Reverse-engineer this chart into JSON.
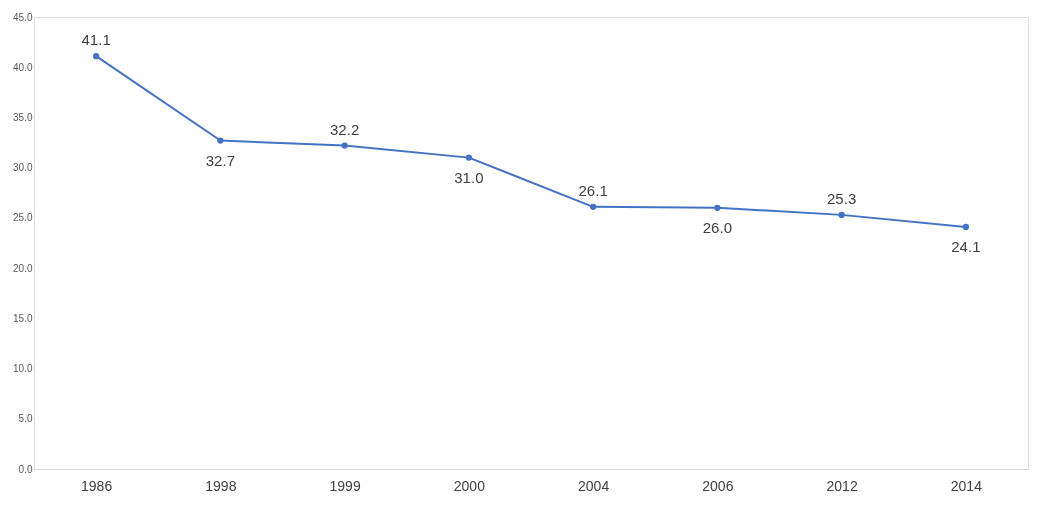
{
  "chart_data": {
    "type": "line",
    "categories": [
      "1986",
      "1998",
      "1999",
      "2000",
      "2004",
      "2006",
      "2012",
      "2014"
    ],
    "series": [
      {
        "color": "#4472c4",
        "values": [
          41.1,
          32.7,
          32.2,
          31.0,
          26.1,
          26.0,
          25.3,
          24.1
        ],
        "value_labels": [
          "41.1",
          "32.7",
          "32.2",
          "31.0",
          "26.1",
          "26.0",
          "25.3",
          "24.1"
        ]
      }
    ],
    "ylim": [
      0,
      45
    ],
    "yticks": [
      {
        "value": 0,
        "label": "0.0"
      },
      {
        "value": 5,
        "label": "5.0"
      },
      {
        "value": 10,
        "label": "10.0"
      },
      {
        "value": 15,
        "label": "15.0"
      },
      {
        "value": 20,
        "label": "20.0"
      },
      {
        "value": 25,
        "label": "25.0"
      },
      {
        "value": 30,
        "label": "30.0"
      },
      {
        "value": 35,
        "label": "35.0"
      },
      {
        "value": 40,
        "label": "40.0"
      },
      {
        "value": 45,
        "label": "45.0"
      }
    ],
    "grid": false,
    "marker": "circle",
    "line_style": "solid"
  }
}
